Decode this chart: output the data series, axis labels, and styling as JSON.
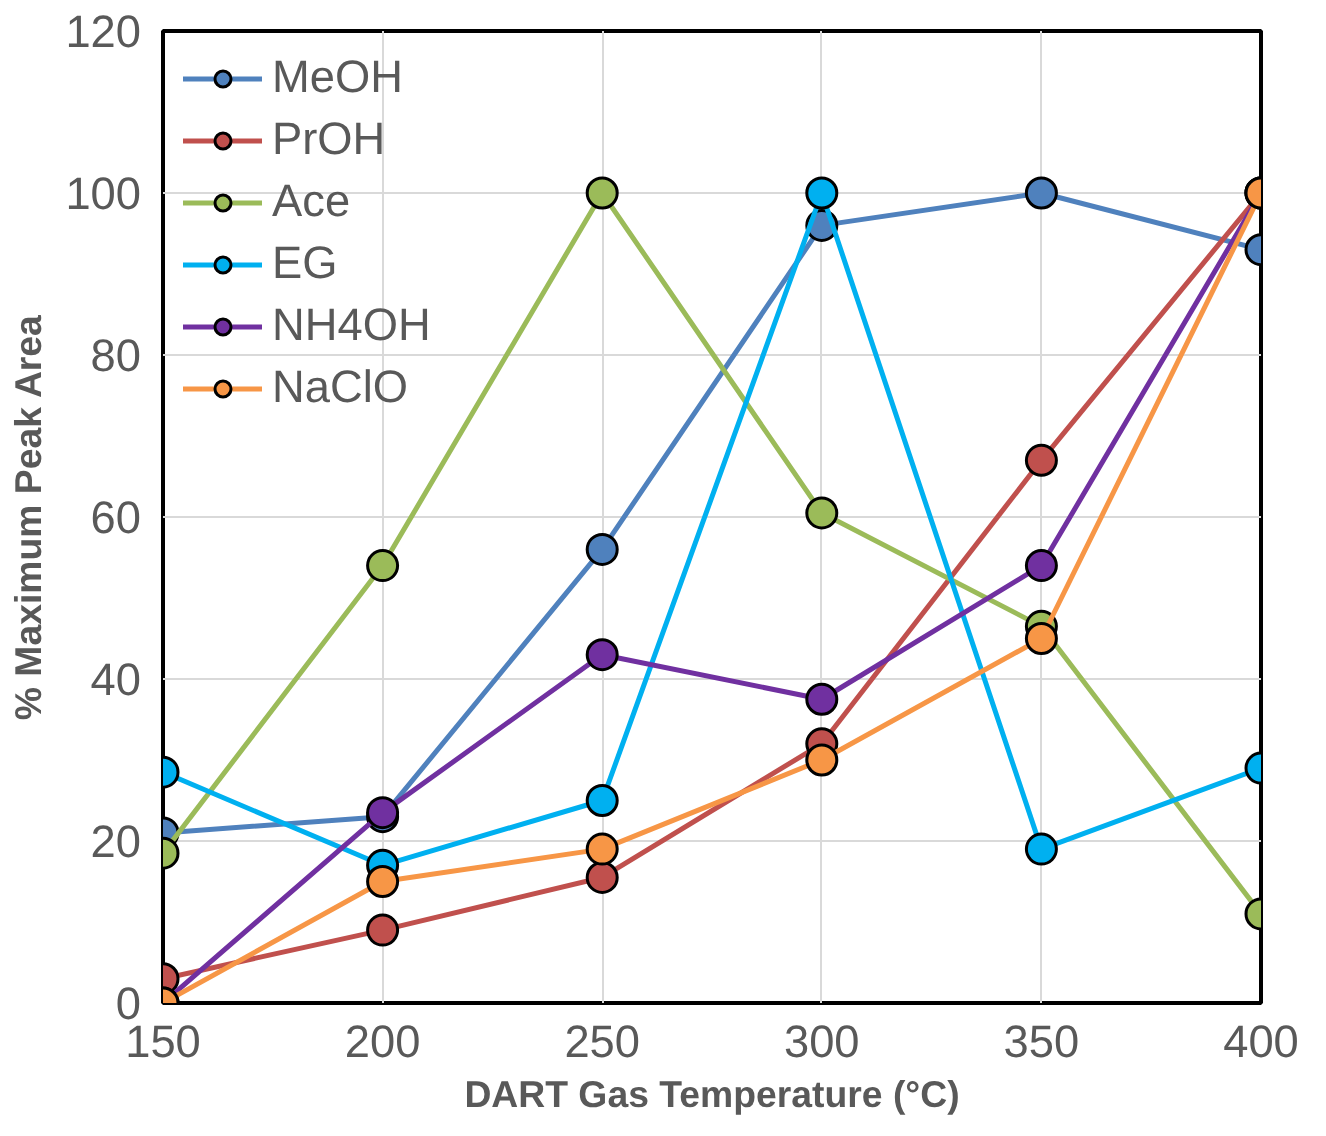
{
  "chart_data": {
    "type": "line",
    "xlabel": "DART Gas Temperature (°C)",
    "ylabel": "% Maximum Peak Area",
    "x": [
      150,
      200,
      250,
      300,
      350,
      400
    ],
    "xlim": [
      150,
      400
    ],
    "xticks": [
      150,
      200,
      250,
      300,
      350,
      400
    ],
    "ylim": [
      0,
      120
    ],
    "yticks": [
      0,
      20,
      40,
      60,
      80,
      100,
      120
    ],
    "grid": true,
    "legend": "top left",
    "marker": "circle",
    "line_style": "solid",
    "series": [
      {
        "name": "MeOH",
        "color": "#4f81bd",
        "values": [
          21,
          23,
          56,
          96,
          100,
          93
        ]
      },
      {
        "name": "PrOH",
        "color": "#c0504d",
        "values": [
          3,
          9,
          15.5,
          32,
          67,
          100
        ]
      },
      {
        "name": "Ace",
        "color": "#9bbb59",
        "values": [
          18.5,
          54,
          100,
          60.5,
          46.5,
          11
        ]
      },
      {
        "name": "EG",
        "color": "#00b0f0",
        "values": [
          28.5,
          17,
          25,
          100,
          19,
          29
        ]
      },
      {
        "name": "NH4OH",
        "color": "#7030a0",
        "values": [
          0,
          23.5,
          43,
          37.5,
          54,
          100
        ]
      },
      {
        "name": "NaClO",
        "color": "#f79646",
        "values": [
          0,
          15,
          19,
          30,
          45,
          100
        ]
      }
    ]
  }
}
